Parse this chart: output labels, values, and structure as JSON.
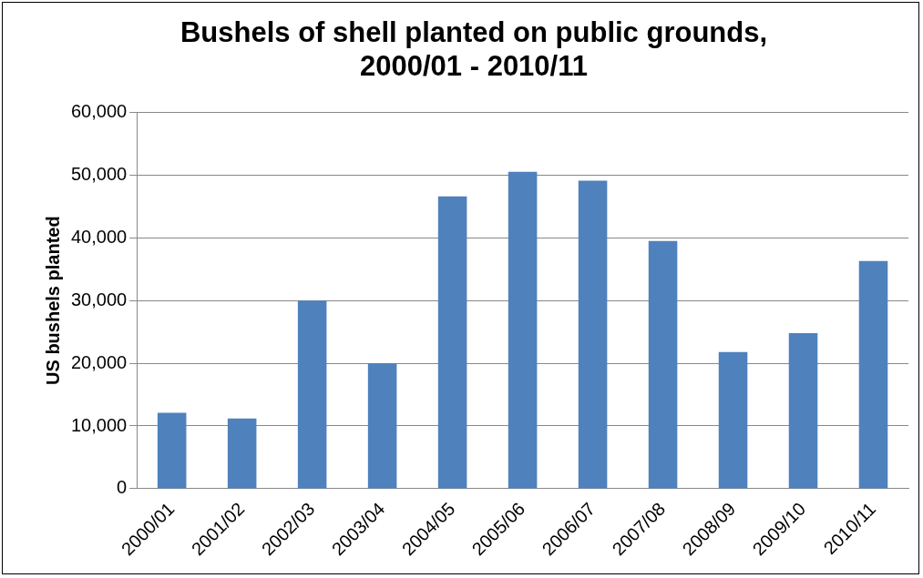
{
  "chart_data": {
    "type": "bar",
    "title": "Bushels of shell planted on public grounds, 2000/01 - 2010/11",
    "ylabel": "US bushels planted",
    "categories": [
      "2000/01",
      "2001/02",
      "2002/03",
      "2003/04",
      "2004/05",
      "2005/06",
      "2006/07",
      "2007/08",
      "2008/09",
      "2009/10",
      "2010/11"
    ],
    "values": [
      12100,
      11200,
      30000,
      20000,
      46600,
      50500,
      49100,
      39500,
      21800,
      24800,
      36300
    ],
    "color": "#4f81bd",
    "ylim": [
      0,
      60000
    ],
    "yticks": [
      {
        "value": 0,
        "label": "0"
      },
      {
        "value": 10000,
        "label": "10,000"
      },
      {
        "value": 20000,
        "label": "20,000"
      },
      {
        "value": 30000,
        "label": "30,000"
      },
      {
        "value": 40000,
        "label": "40,000"
      },
      {
        "value": 50000,
        "label": "50,000"
      },
      {
        "value": 60000,
        "label": "60,000"
      }
    ],
    "grid": "y",
    "legend": false
  }
}
